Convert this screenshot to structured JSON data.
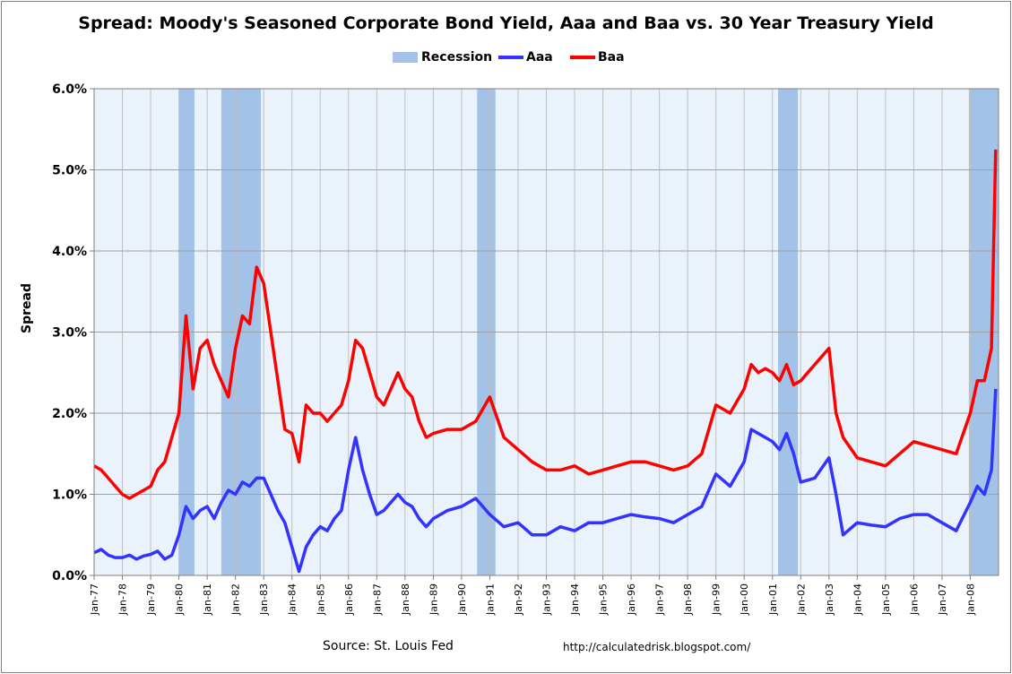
{
  "chart_data": {
    "type": "line",
    "title": "Spread: Moody's Seasoned Corporate Bond Yield, Aaa and Baa vs. 30 Year Treasury Yield",
    "ylabel": "Spread",
    "xlabel": "",
    "ylim": [
      0,
      6
    ],
    "xlim": [
      1977.0,
      2009.0
    ],
    "yticks": [
      "0.0%",
      "1.0%",
      "2.0%",
      "3.0%",
      "4.0%",
      "5.0%",
      "6.0%"
    ],
    "xtick_labels": [
      "Jan-77",
      "Jan-78",
      "Jan-79",
      "Jan-80",
      "Jan-81",
      "Jan-82",
      "Jan-83",
      "Jan-84",
      "Jan-85",
      "Jan-86",
      "Jan-87",
      "Jan-88",
      "Jan-89",
      "Jan-90",
      "Jan-91",
      "Jan-92",
      "Jan-93",
      "Jan-94",
      "Jan-95",
      "Jan-96",
      "Jan-97",
      "Jan-98",
      "Jan-99",
      "Jan-00",
      "Jan-01",
      "Jan-02",
      "Jan-03",
      "Jan-04",
      "Jan-05",
      "Jan-06",
      "Jan-07",
      "Jan-08"
    ],
    "grid": true,
    "legend": [
      "Recession",
      "Aaa",
      "Baa"
    ],
    "legend_position": "top",
    "colors": {
      "recession": "#a3c2e8",
      "aaa": "#3333ff",
      "baa": "#ff0000"
    },
    "recessions": [
      [
        1980.0,
        1980.55
      ],
      [
        1981.5,
        1982.9
      ],
      [
        1990.55,
        1991.2
      ],
      [
        2001.2,
        2001.9
      ],
      [
        2007.95,
        2009.0
      ]
    ],
    "series": [
      {
        "name": "Aaa",
        "x": [
          1977.0,
          1977.25,
          1977.5,
          1977.75,
          1978.0,
          1978.25,
          1978.5,
          1978.75,
          1979.0,
          1979.25,
          1979.5,
          1979.75,
          1980.0,
          1980.25,
          1980.5,
          1980.75,
          1981.0,
          1981.25,
          1981.5,
          1981.75,
          1982.0,
          1982.25,
          1982.5,
          1982.75,
          1983.0,
          1983.25,
          1983.5,
          1983.75,
          1984.0,
          1984.25,
          1984.5,
          1984.75,
          1985.0,
          1985.25,
          1985.5,
          1985.75,
          1986.0,
          1986.25,
          1986.5,
          1986.75,
          1987.0,
          1987.25,
          1987.5,
          1987.75,
          1988.0,
          1988.25,
          1988.5,
          1988.75,
          1989.0,
          1989.5,
          1990.0,
          1990.5,
          1991.0,
          1991.5,
          1992.0,
          1992.5,
          1993.0,
          1993.5,
          1994.0,
          1994.5,
          1995.0,
          1995.5,
          1996.0,
          1996.5,
          1997.0,
          1997.5,
          1998.0,
          1998.5,
          1999.0,
          1999.5,
          2000.0,
          2000.25,
          2000.5,
          2000.75,
          2001.0,
          2001.25,
          2001.5,
          2001.75,
          2002.0,
          2002.5,
          2003.0,
          2003.25,
          2003.5,
          2004.0,
          2004.5,
          2005.0,
          2005.5,
          2006.0,
          2006.5,
          2007.0,
          2007.5,
          2008.0,
          2008.25,
          2008.5,
          2008.75,
          2008.9
        ],
        "values": [
          0.28,
          0.32,
          0.25,
          0.22,
          0.22,
          0.25,
          0.2,
          0.24,
          0.26,
          0.3,
          0.2,
          0.25,
          0.5,
          0.85,
          0.7,
          0.8,
          0.85,
          0.7,
          0.9,
          1.05,
          1.0,
          1.15,
          1.1,
          1.2,
          1.2,
          1.0,
          0.8,
          0.65,
          0.35,
          0.05,
          0.35,
          0.5,
          0.6,
          0.55,
          0.7,
          0.8,
          1.3,
          1.7,
          1.3,
          1.0,
          0.75,
          0.8,
          0.9,
          1.0,
          0.9,
          0.85,
          0.7,
          0.6,
          0.7,
          0.8,
          0.85,
          0.95,
          0.75,
          0.6,
          0.65,
          0.5,
          0.5,
          0.6,
          0.55,
          0.65,
          0.65,
          0.7,
          0.75,
          0.72,
          0.7,
          0.65,
          0.75,
          0.85,
          1.25,
          1.1,
          1.4,
          1.8,
          1.75,
          1.7,
          1.65,
          1.55,
          1.75,
          1.5,
          1.15,
          1.2,
          1.45,
          1.0,
          0.5,
          0.65,
          0.62,
          0.6,
          0.7,
          0.75,
          0.75,
          0.65,
          0.55,
          0.9,
          1.1,
          1.0,
          1.3,
          2.3
        ]
      },
      {
        "name": "Baa",
        "x": [
          1977.0,
          1977.25,
          1977.5,
          1977.75,
          1978.0,
          1978.25,
          1978.5,
          1978.75,
          1979.0,
          1979.25,
          1979.5,
          1979.75,
          1980.0,
          1980.25,
          1980.5,
          1980.75,
          1981.0,
          1981.25,
          1981.5,
          1981.75,
          1982.0,
          1982.25,
          1982.5,
          1982.75,
          1983.0,
          1983.25,
          1983.5,
          1983.75,
          1984.0,
          1984.25,
          1984.5,
          1984.75,
          1985.0,
          1985.25,
          1985.5,
          1985.75,
          1986.0,
          1986.25,
          1986.5,
          1986.75,
          1987.0,
          1987.25,
          1987.5,
          1987.75,
          1988.0,
          1988.25,
          1988.5,
          1988.75,
          1989.0,
          1989.5,
          1990.0,
          1990.5,
          1991.0,
          1991.5,
          1992.0,
          1992.5,
          1993.0,
          1993.5,
          1994.0,
          1994.5,
          1995.0,
          1995.5,
          1996.0,
          1996.5,
          1997.0,
          1997.5,
          1998.0,
          1998.5,
          1999.0,
          1999.5,
          2000.0,
          2000.25,
          2000.5,
          2000.75,
          2001.0,
          2001.25,
          2001.5,
          2001.75,
          2002.0,
          2002.5,
          2003.0,
          2003.25,
          2003.5,
          2004.0,
          2004.5,
          2005.0,
          2005.5,
          2006.0,
          2006.5,
          2007.0,
          2007.5,
          2008.0,
          2008.25,
          2008.5,
          2008.75,
          2008.9
        ],
        "values": [
          1.35,
          1.3,
          1.2,
          1.1,
          1.0,
          0.95,
          1.0,
          1.05,
          1.1,
          1.3,
          1.4,
          1.7,
          2.0,
          3.2,
          2.3,
          2.8,
          2.9,
          2.6,
          2.4,
          2.2,
          2.8,
          3.2,
          3.1,
          3.8,
          3.6,
          3.0,
          2.4,
          1.8,
          1.75,
          1.4,
          2.1,
          2.0,
          2.0,
          1.9,
          2.0,
          2.1,
          2.4,
          2.9,
          2.8,
          2.5,
          2.2,
          2.1,
          2.3,
          2.5,
          2.3,
          2.2,
          1.9,
          1.7,
          1.75,
          1.8,
          1.8,
          1.9,
          2.2,
          1.7,
          1.55,
          1.4,
          1.3,
          1.3,
          1.35,
          1.25,
          1.3,
          1.35,
          1.4,
          1.4,
          1.35,
          1.3,
          1.35,
          1.5,
          2.1,
          2.0,
          2.3,
          2.6,
          2.5,
          2.55,
          2.5,
          2.4,
          2.6,
          2.35,
          2.4,
          2.6,
          2.8,
          2.0,
          1.7,
          1.45,
          1.4,
          1.35,
          1.5,
          1.65,
          1.6,
          1.55,
          1.5,
          2.0,
          2.4,
          2.4,
          2.8,
          5.25
        ]
      }
    ]
  },
  "footer": {
    "source": "Source: St. Louis Fed",
    "url": "http://calculatedrisk.blogspot.com/"
  }
}
